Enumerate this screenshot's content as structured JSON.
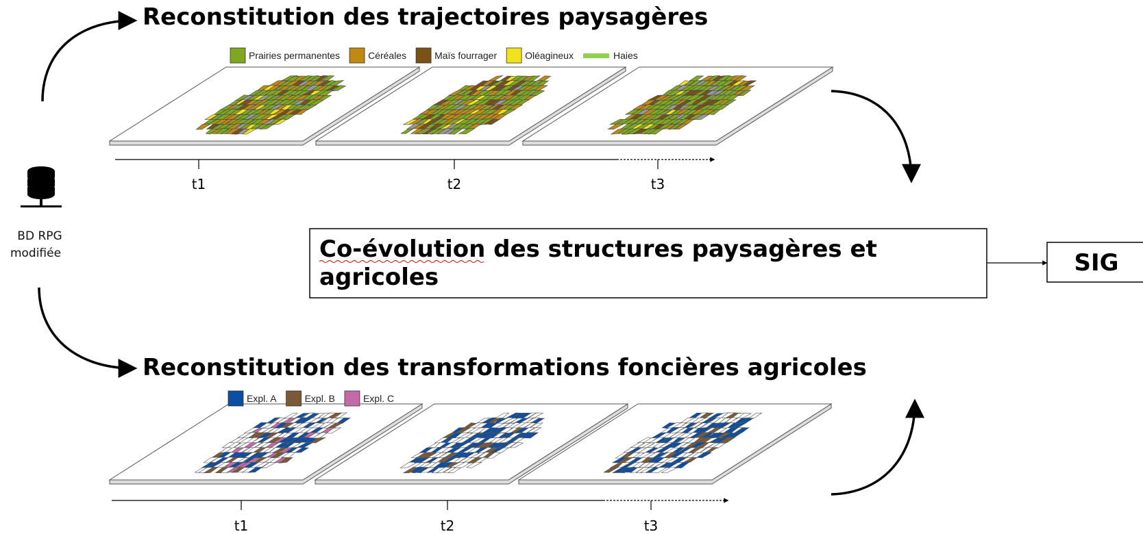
{
  "top_title": "Reconstitution des trajectoires paysagères",
  "top_legend": [
    {
      "label": "Prairies permanentes",
      "color": "#7fa81e"
    },
    {
      "label": "Céréales",
      "color": "#c08a12"
    },
    {
      "label": "Maïs fourrager",
      "color": "#7a5218"
    },
    {
      "label": "Oléagineux",
      "color": "#f2e21c"
    },
    {
      "label": "Haies",
      "color": "#8fd14f"
    }
  ],
  "top_timeline": [
    "t1",
    "t2",
    "t3"
  ],
  "database_label": [
    "BD RPG",
    "modifiée"
  ],
  "center_box": [
    "Co-évolution",
    " des structures paysagères et",
    "agricoles"
  ],
  "output_box": "SIG",
  "bottom_title": "Reconstitution des transformations foncières agricoles",
  "bottom_legend": [
    {
      "label": "Expl. A",
      "color": "#0b4ea2"
    },
    {
      "label": "Expl. B",
      "color": "#7a5a36"
    },
    {
      "label": "Expl. C",
      "color": "#c46aa8"
    }
  ],
  "bottom_timeline": [
    "t1",
    "t2",
    "t3"
  ]
}
